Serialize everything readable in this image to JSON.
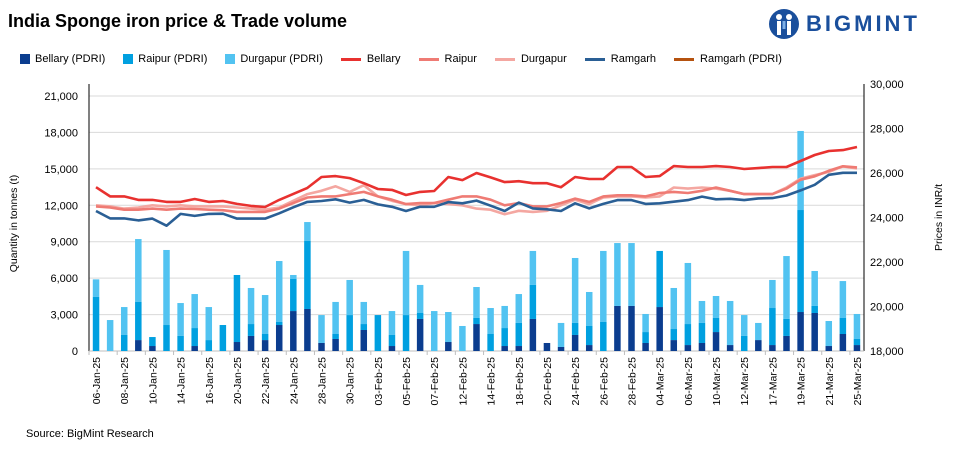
{
  "colors": {
    "bellary_pdri": "#0b3d8f",
    "raipur_pdri": "#00a0e0",
    "durgapur_pdri": "#52c3f1",
    "bellary": "#e8312f",
    "raipur": "#ef7b74",
    "durgapur": "#f4a7a1",
    "ramgarh": "#2a5f95",
    "ramgarh_pdri": "#b5520f",
    "brand": "#1a4f9c"
  },
  "brand": {
    "name": "BIGMINT"
  },
  "source": "Source: BigMint Research",
  "chart_data": {
    "type": "bar+line",
    "title": "India Sponge iron price & Trade volume",
    "ylabel": "Quantity in tonnes (t)",
    "y2label": "Prices in INR/t",
    "ylim": [
      0,
      21000
    ],
    "y_ticks": [
      "0",
      "3,000",
      "6,000",
      "9,000",
      "12,000",
      "15,000",
      "18,000",
      "21,000"
    ],
    "y2lim": [
      18000,
      30000
    ],
    "y2_ticks": [
      "18,000",
      "20,000",
      "22,000",
      "24,000",
      "26,000",
      "28,000",
      "30,000"
    ],
    "grid": true,
    "legend_position": "top",
    "x_labels": [
      "06-Jan-25",
      "08-Jan-25",
      "10-Jan-25",
      "14-Jan-25",
      "16-Jan-25",
      "20-Jan-25",
      "22-Jan-25",
      "24-Jan-25",
      "28-Jan-25",
      "30-Jan-25",
      "03-Feb-25",
      "05-Feb-25",
      "07-Feb-25",
      "12-Feb-25",
      "14-Feb-25",
      "18-Feb-25",
      "20-Feb-25",
      "24-Feb-25",
      "26-Feb-25",
      "28-Feb-25",
      "04-Mar-25",
      "06-Mar-25",
      "10-Mar-25",
      "12-Mar-25",
      "17-Mar-25",
      "19-Mar-25",
      "21-Mar-25",
      "25-Mar-25"
    ],
    "bar_series": [
      {
        "name": "Bellary (PDRI)",
        "color_key": "bellary_pdri",
        "values": [
          0,
          0,
          0,
          900,
          410,
          0,
          0,
          410,
          0,
          0,
          740,
          1240,
          900,
          2140,
          3290,
          3460,
          660,
          990,
          0,
          1730,
          0,
          410,
          0,
          2640,
          0,
          740,
          0,
          2220,
          0,
          410,
          410,
          2640,
          660,
          330,
          1320,
          490,
          0,
          3710,
          3710,
          660,
          3620,
          900,
          490,
          660,
          1560,
          490,
          0,
          900,
          490,
          1240,
          3210,
          3130,
          410,
          1400,
          490
        ]
      },
      {
        "name": "Raipur (PDRI)",
        "color_key": "raipur_pdri",
        "values": [
          4450,
          0,
          1320,
          3160,
          740,
          2140,
          1240,
          1480,
          900,
          2140,
          5520,
          980,
          500,
          250,
          2640,
          5600,
          0,
          410,
          2960,
          490,
          2960,
          910,
          2960,
          490,
          0,
          0,
          0,
          500,
          1400,
          1480,
          1900,
          2800,
          0,
          0,
          990,
          1570,
          2390,
          0,
          0,
          900,
          4620,
          910,
          1730,
          1650,
          1160,
          0,
          1240,
          0,
          3050,
          1400,
          8400,
          580,
          0,
          1320,
          500
        ]
      },
      {
        "name": "Durgapur (PDRI)",
        "color_key": "durgapur_pdri",
        "values": [
          1450,
          2550,
          2300,
          5160,
          0,
          6180,
          2710,
          2800,
          2720,
          0,
          0,
          2970,
          3210,
          5020,
          330,
          1560,
          2300,
          2640,
          2890,
          1820,
          0,
          1970,
          5280,
          2310,
          3290,
          2470,
          2060,
          2550,
          2140,
          1820,
          2380,
          2800,
          0,
          1980,
          5350,
          2800,
          5850,
          5180,
          5180,
          1490,
          0,
          3380,
          5030,
          1810,
          1810,
          3630,
          1720,
          1410,
          2310,
          5180,
          6510,
          2880,
          2060,
          3040,
          2060
        ]
      }
    ],
    "line_series": [
      {
        "name": "Bellary",
        "color_key": "bellary",
        "values": [
          25360,
          24950,
          24950,
          24790,
          24790,
          24700,
          24700,
          24830,
          24700,
          24740,
          24610,
          24520,
          24470,
          24790,
          25060,
          25330,
          25820,
          25860,
          25770,
          25540,
          25280,
          25240,
          25010,
          25150,
          25190,
          25820,
          25680,
          26000,
          25800,
          25590,
          25630,
          25540,
          25540,
          25360,
          25820,
          25730,
          25730,
          26270,
          26270,
          25820,
          25860,
          26310,
          26270,
          26270,
          26310,
          26270,
          26180,
          26220,
          26270,
          26270,
          26540,
          26810,
          26990,
          27030,
          27170
        ]
      },
      {
        "name": "Raipur",
        "color_key": "raipur",
        "values": [
          24500,
          24450,
          24350,
          24350,
          24400,
          24350,
          24400,
          24380,
          24350,
          24330,
          24250,
          24250,
          24250,
          24400,
          24650,
          24900,
          24950,
          24950,
          25050,
          25150,
          24950,
          24800,
          24600,
          24650,
          24650,
          24800,
          24950,
          24950,
          24800,
          24550,
          24650,
          24500,
          24500,
          24650,
          24850,
          24700,
          24950,
          25000,
          25000,
          24950,
          25100,
          25150,
          25100,
          25200,
          25350,
          25200,
          25050,
          25050,
          25050,
          25300,
          25700,
          25850,
          26100,
          26300,
          26250
        ]
      },
      {
        "name": "Durgapur",
        "color_key": "durgapur",
        "values": [
          24550,
          24500,
          24400,
          24450,
          24550,
          24500,
          24550,
          24500,
          24500,
          24500,
          24450,
          24400,
          24350,
          24450,
          24750,
          25050,
          25200,
          25400,
          25150,
          25450,
          24950,
          24750,
          24600,
          24550,
          24650,
          24600,
          24550,
          24400,
          24350,
          24150,
          24300,
          24250,
          24300,
          24550,
          24800,
          24600,
          24900,
          24950,
          24950,
          24900,
          24950,
          25350,
          25300,
          25350,
          25300,
          25200,
          25050,
          25050,
          25050,
          25350,
          25750,
          25900,
          26050,
          26300,
          26200
        ]
      },
      {
        "name": "Ramgarh",
        "color_key": "ramgarh",
        "values": [
          24290,
          23960,
          23960,
          23870,
          23950,
          23630,
          24160,
          24070,
          24160,
          24170,
          23950,
          23950,
          23950,
          24190,
          24460,
          24700,
          24740,
          24820,
          24670,
          24790,
          24590,
          24480,
          24290,
          24480,
          24480,
          24690,
          24640,
          24760,
          24530,
          24290,
          24670,
          24410,
          24370,
          24290,
          24640,
          24410,
          24610,
          24780,
          24780,
          24610,
          24640,
          24710,
          24780,
          24940,
          24820,
          24840,
          24780,
          24860,
          24870,
          24990,
          25220,
          25470,
          25920,
          26010,
          26010
        ]
      },
      {
        "name": "Ramgarh (PDRI)",
        "color_key": "ramgarh_pdri",
        "values": []
      }
    ]
  }
}
